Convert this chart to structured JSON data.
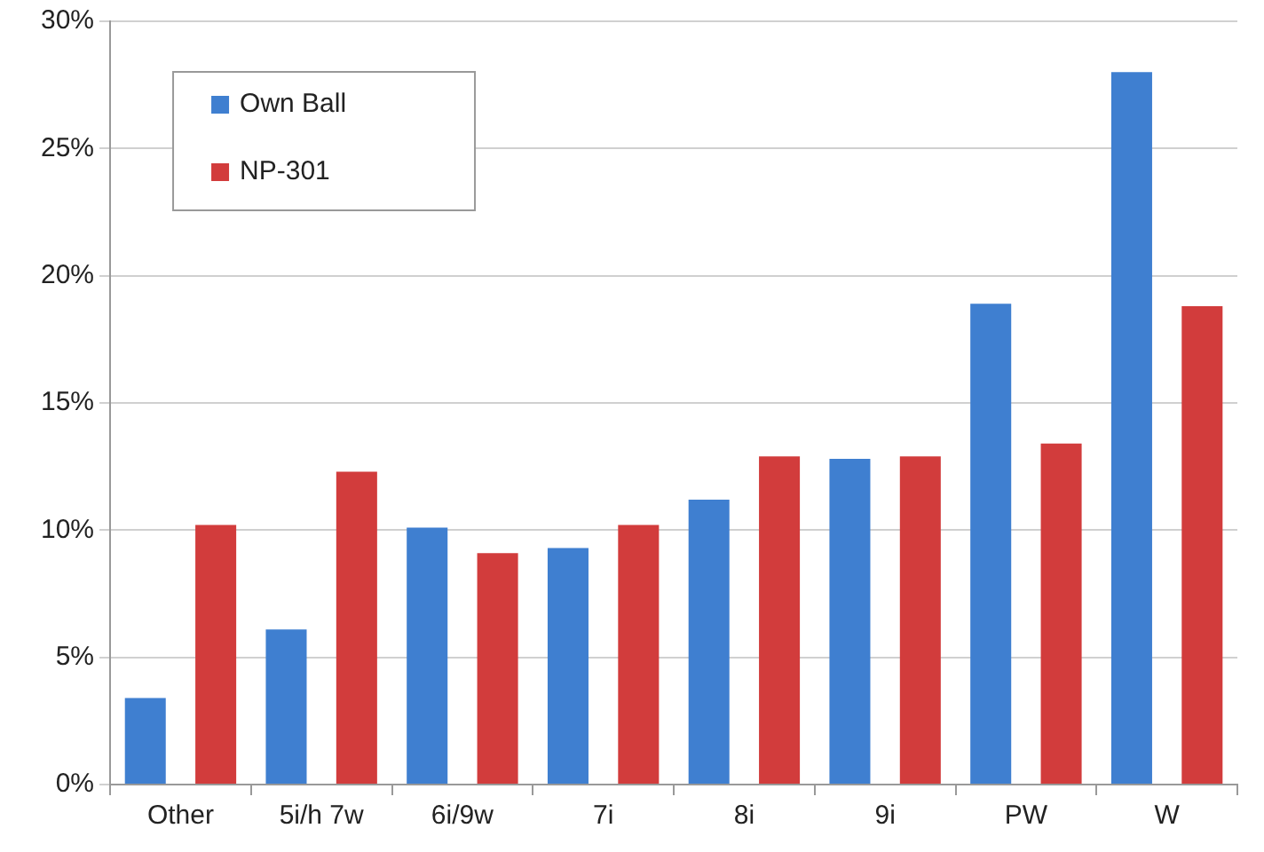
{
  "chart_data": {
    "type": "bar",
    "categories": [
      "Other",
      "5i/h 7w",
      "6i/9w",
      "7i",
      "8i",
      "9i",
      "PW",
      "W"
    ],
    "series": [
      {
        "name": "Own Ball",
        "color": "#3f7fd0",
        "values": [
          3.4,
          6.1,
          10.1,
          9.3,
          11.2,
          12.8,
          18.9,
          28.0
        ]
      },
      {
        "name": "NP-301",
        "color": "#d23c3c",
        "values": [
          10.2,
          12.3,
          9.1,
          10.2,
          12.9,
          12.9,
          13.4,
          18.8
        ]
      }
    ],
    "ylim": [
      0,
      30
    ],
    "yticks": [
      {
        "value": 0,
        "label": "0%"
      },
      {
        "value": 5,
        "label": "5%"
      },
      {
        "value": 10,
        "label": "10%"
      },
      {
        "value": 15,
        "label": "15%"
      },
      {
        "value": 20,
        "label": "20%"
      },
      {
        "value": 25,
        "label": "25%"
      },
      {
        "value": 30,
        "label": "30%"
      }
    ],
    "grid": "y",
    "legend": "top left"
  }
}
